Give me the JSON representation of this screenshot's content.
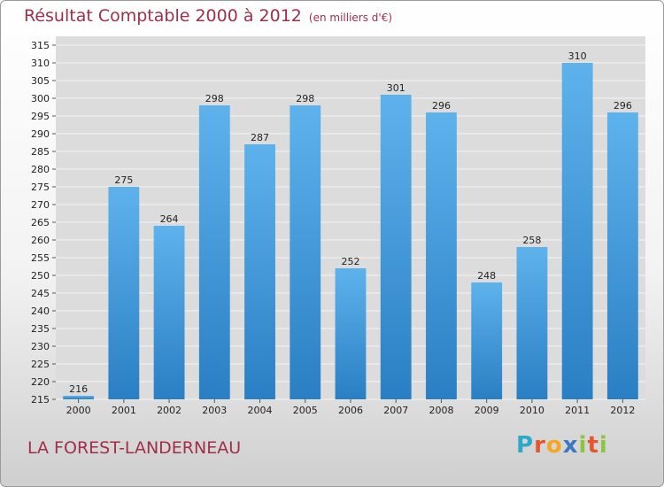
{
  "title": "Résultat Comptable 2000 à 2012",
  "unit": "(en milliers d'€)",
  "location": "LA FOREST-LANDERNEAU",
  "logo": "Proxiti",
  "colors": {
    "bar": "#3d8fd4",
    "title": "#a0304a"
  },
  "chart_data": {
    "type": "bar",
    "title": "Résultat Comptable 2000 à 2012",
    "categories": [
      "2000",
      "2001",
      "2002",
      "2003",
      "2004",
      "2005",
      "2006",
      "2007",
      "2008",
      "2009",
      "2010",
      "2011",
      "2012"
    ],
    "values": [
      216,
      275,
      264,
      298,
      287,
      298,
      252,
      301,
      296,
      248,
      258,
      310,
      296
    ],
    "ylim": [
      215,
      315
    ],
    "ytick_step": 5,
    "grid": true,
    "legend": "none"
  }
}
